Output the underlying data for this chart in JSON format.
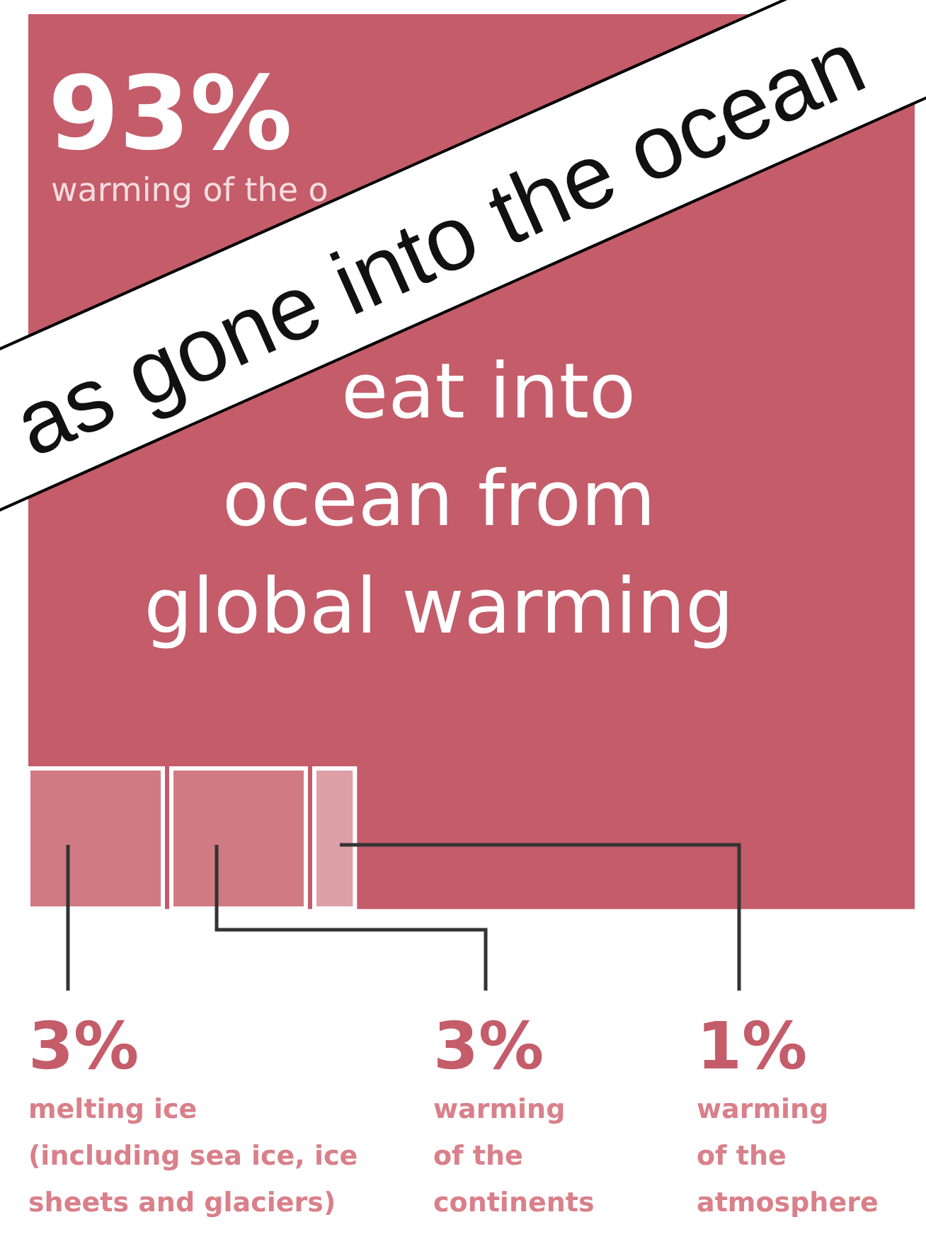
{
  "chart_data": {
    "type": "other",
    "categories": [
      "warming of the o",
      "melting ice\n(including sea ice, ice\nsheets and glaciers)",
      "warming\nof the\ncontinents",
      "warming\nof the\natmosphere"
    ],
    "values": [
      93,
      3,
      3,
      1
    ],
    "value_labels": [
      "93%",
      "3%",
      "3%",
      "1%"
    ],
    "colors": [
      "#c45c6a",
      "#d07a84",
      "#d07a84",
      "#dea0a7"
    ],
    "annotations": [
      "eat into\nocean from\nglobal warming",
      "as gone into the ocean"
    ]
  }
}
